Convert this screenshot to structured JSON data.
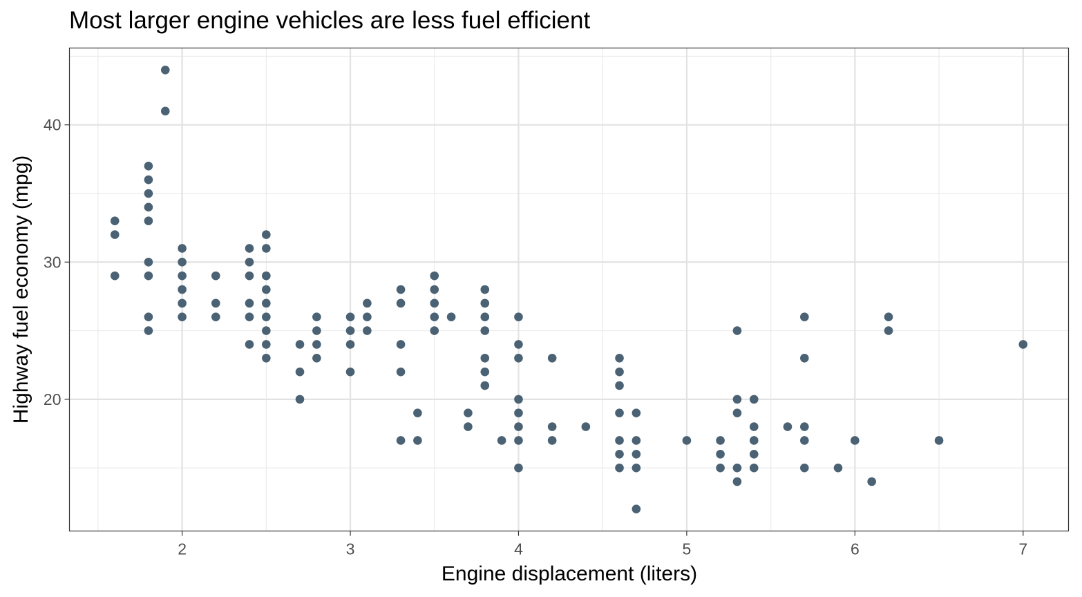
{
  "chart_data": {
    "type": "scatter",
    "title": "Most larger engine vehicles are less fuel efficient",
    "xlabel": "Engine displacement (liters)",
    "ylabel": "Highway fuel economy (mpg)",
    "xlim": [
      1.33,
      7.27
    ],
    "ylim": [
      10.4,
      45.6
    ],
    "xticks": [
      2,
      3,
      4,
      5,
      6,
      7
    ],
    "yticks": [
      20,
      30,
      40
    ],
    "grid": true,
    "point_color": "#4a6274",
    "points": [
      [
        1.6,
        33
      ],
      [
        1.6,
        32
      ],
      [
        1.6,
        29
      ],
      [
        1.8,
        37
      ],
      [
        1.8,
        36
      ],
      [
        1.8,
        35
      ],
      [
        1.8,
        34
      ],
      [
        1.8,
        33
      ],
      [
        1.8,
        30
      ],
      [
        1.8,
        29
      ],
      [
        1.8,
        26
      ],
      [
        1.8,
        25
      ],
      [
        1.9,
        44
      ],
      [
        1.9,
        41
      ],
      [
        2.0,
        31
      ],
      [
        2.0,
        30
      ],
      [
        2.0,
        29
      ],
      [
        2.0,
        28
      ],
      [
        2.0,
        27
      ],
      [
        2.0,
        26
      ],
      [
        2.2,
        29
      ],
      [
        2.2,
        27
      ],
      [
        2.2,
        26
      ],
      [
        2.4,
        31
      ],
      [
        2.4,
        30
      ],
      [
        2.4,
        29
      ],
      [
        2.4,
        27
      ],
      [
        2.4,
        26
      ],
      [
        2.4,
        24
      ],
      [
        2.5,
        32
      ],
      [
        2.5,
        31
      ],
      [
        2.5,
        29
      ],
      [
        2.5,
        28
      ],
      [
        2.5,
        27
      ],
      [
        2.5,
        26
      ],
      [
        2.5,
        25
      ],
      [
        2.5,
        24
      ],
      [
        2.5,
        23
      ],
      [
        2.7,
        24
      ],
      [
        2.7,
        22
      ],
      [
        2.7,
        20
      ],
      [
        2.8,
        26
      ],
      [
        2.8,
        25
      ],
      [
        2.8,
        24
      ],
      [
        2.8,
        23
      ],
      [
        3.0,
        26
      ],
      [
        3.0,
        25
      ],
      [
        3.0,
        24
      ],
      [
        3.0,
        22
      ],
      [
        3.1,
        27
      ],
      [
        3.1,
        26
      ],
      [
        3.1,
        25
      ],
      [
        3.3,
        28
      ],
      [
        3.3,
        27
      ],
      [
        3.3,
        24
      ],
      [
        3.3,
        22
      ],
      [
        3.3,
        17
      ],
      [
        3.4,
        19
      ],
      [
        3.4,
        17
      ],
      [
        3.5,
        29
      ],
      [
        3.5,
        28
      ],
      [
        3.5,
        27
      ],
      [
        3.5,
        26
      ],
      [
        3.5,
        25
      ],
      [
        3.6,
        26
      ],
      [
        3.7,
        19
      ],
      [
        3.7,
        18
      ],
      [
        3.8,
        28
      ],
      [
        3.8,
        27
      ],
      [
        3.8,
        26
      ],
      [
        3.8,
        25
      ],
      [
        3.8,
        23
      ],
      [
        3.8,
        22
      ],
      [
        3.8,
        21
      ],
      [
        3.9,
        17
      ],
      [
        4.0,
        26
      ],
      [
        4.0,
        24
      ],
      [
        4.0,
        23
      ],
      [
        4.0,
        20
      ],
      [
        4.0,
        19
      ],
      [
        4.0,
        18
      ],
      [
        4.0,
        17
      ],
      [
        4.0,
        15
      ],
      [
        4.2,
        23
      ],
      [
        4.2,
        18
      ],
      [
        4.2,
        17
      ],
      [
        4.4,
        18
      ],
      [
        4.6,
        23
      ],
      [
        4.6,
        22
      ],
      [
        4.6,
        21
      ],
      [
        4.6,
        19
      ],
      [
        4.6,
        17
      ],
      [
        4.6,
        16
      ],
      [
        4.6,
        15
      ],
      [
        4.7,
        19
      ],
      [
        4.7,
        17
      ],
      [
        4.7,
        16
      ],
      [
        4.7,
        15
      ],
      [
        4.7,
        12
      ],
      [
        5.0,
        17
      ],
      [
        5.2,
        17
      ],
      [
        5.2,
        16
      ],
      [
        5.2,
        15
      ],
      [
        5.3,
        25
      ],
      [
        5.3,
        20
      ],
      [
        5.3,
        19
      ],
      [
        5.3,
        15
      ],
      [
        5.3,
        14
      ],
      [
        5.4,
        20
      ],
      [
        5.4,
        18
      ],
      [
        5.4,
        17
      ],
      [
        5.4,
        16
      ],
      [
        5.4,
        15
      ],
      [
        5.6,
        18
      ],
      [
        5.7,
        26
      ],
      [
        5.7,
        23
      ],
      [
        5.7,
        18
      ],
      [
        5.7,
        17
      ],
      [
        5.7,
        15
      ],
      [
        5.9,
        15
      ],
      [
        6.0,
        17
      ],
      [
        6.1,
        14
      ],
      [
        6.2,
        26
      ],
      [
        6.2,
        25
      ],
      [
        6.5,
        17
      ],
      [
        7.0,
        24
      ]
    ]
  }
}
